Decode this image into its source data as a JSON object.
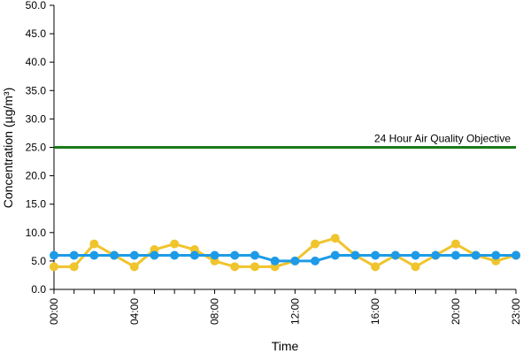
{
  "chart_data": {
    "type": "line",
    "title": "",
    "xlabel": "Time",
    "ylabel": "Concentration (µg/m³)",
    "ylim": [
      0,
      50
    ],
    "yticks": [
      "0.0",
      "5.0",
      "10.0",
      "15.0",
      "20.0",
      "25.0",
      "30.0",
      "35.0",
      "40.0",
      "45.0",
      "50.0"
    ],
    "x": [
      "00:00",
      "01:00",
      "02:00",
      "03:00",
      "04:00",
      "05:00",
      "06:00",
      "07:00",
      "08:00",
      "09:00",
      "10:00",
      "11:00",
      "12:00",
      "13:00",
      "14:00",
      "15:00",
      "16:00",
      "17:00",
      "18:00",
      "19:00",
      "20:00",
      "21:00",
      "22:00",
      "23:00"
    ],
    "xtick_labels": [
      "00:00",
      "04:00",
      "08:00",
      "12:00",
      "16:00",
      "20:00",
      "23:00"
    ],
    "grid": false,
    "legend": "none",
    "series": [
      {
        "color": "#f0c42c",
        "values": [
          4,
          4,
          8,
          6,
          4,
          7,
          8,
          7,
          5,
          4,
          4,
          4,
          5,
          8,
          9,
          6,
          4,
          6,
          4,
          6,
          8,
          6,
          5,
          6
        ]
      },
      {
        "color": "#1e9be6",
        "values": [
          6,
          6,
          6,
          6,
          6,
          6,
          6,
          6,
          6,
          6,
          6,
          5,
          5,
          5,
          6,
          6,
          6,
          6,
          6,
          6,
          6,
          6,
          6,
          6
        ]
      }
    ],
    "reference_line": {
      "label": "24 Hour Air Quality Objective",
      "value": 25,
      "color": "#1a7a1a"
    }
  }
}
